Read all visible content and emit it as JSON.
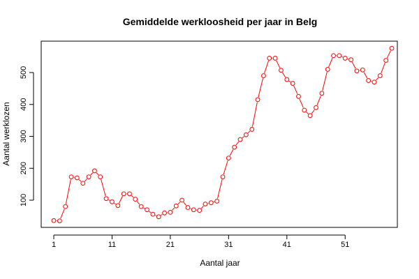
{
  "chart_data": {
    "type": "line",
    "title": "Gemiddelde werkloosheid per jaar in Belg",
    "xlabel": "Aantal jaar",
    "ylabel": "Aantal werklozen",
    "xlim": [
      1,
      59
    ],
    "ylim": [
      34,
      578
    ],
    "x_ticks": [
      1,
      11,
      21,
      31,
      41,
      51
    ],
    "y_ticks": [
      100,
      200,
      300,
      400,
      500
    ],
    "grid": false,
    "legend": "none",
    "colors": {
      "series": "#ff0000",
      "axes": "#000000"
    },
    "series": [
      {
        "x": [
          1,
          2,
          3,
          4,
          5,
          6,
          7,
          8,
          9,
          10,
          11,
          12,
          13,
          14,
          15,
          16,
          17,
          18,
          19,
          20,
          21,
          22,
          23,
          24,
          25,
          26,
          27,
          28,
          29,
          30,
          31,
          32,
          33,
          34,
          35,
          36,
          37,
          38,
          39,
          40,
          41,
          42,
          43,
          44,
          45,
          46,
          47,
          48,
          49,
          50,
          51,
          52,
          53,
          54,
          55,
          56,
          57,
          58,
          59
        ],
        "values": [
          36,
          35,
          80,
          173,
          170,
          153,
          173,
          192,
          173,
          105,
          95,
          83,
          120,
          120,
          103,
          80,
          70,
          56,
          48,
          60,
          62,
          82,
          100,
          77,
          70,
          68,
          88,
          92,
          97,
          173,
          232,
          266,
          290,
          305,
          322,
          415,
          490,
          545,
          545,
          507,
          478,
          466,
          425,
          382,
          365,
          390,
          435,
          510,
          553,
          553,
          545,
          540,
          505,
          508,
          475,
          470,
          490,
          538,
          576
        ]
      }
    ]
  }
}
